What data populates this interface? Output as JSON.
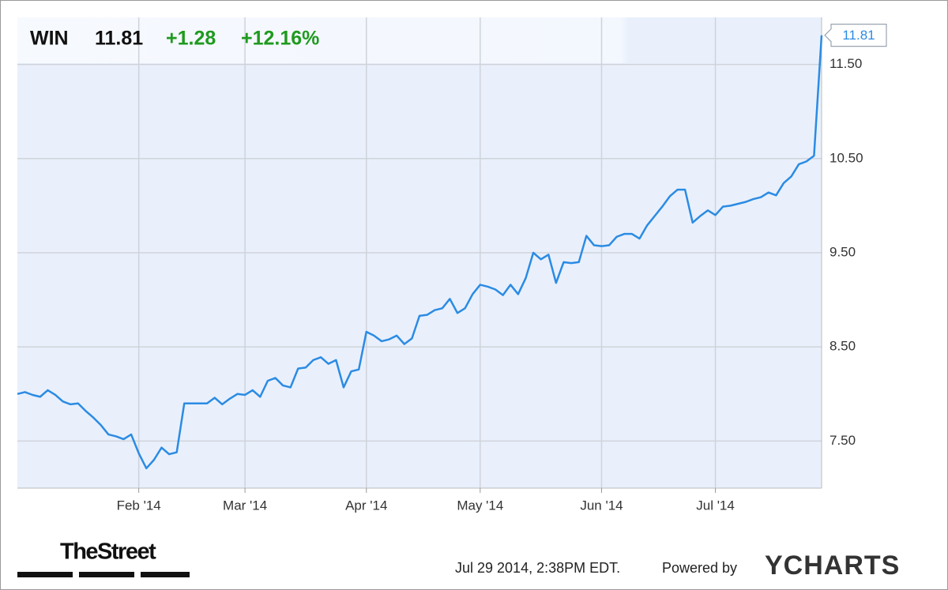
{
  "chart_data": {
    "type": "line",
    "header": {
      "ticker": "WIN",
      "price": "11.81",
      "change": "+1.28",
      "change_pct": "+12.16%"
    },
    "categories": [
      null,
      null,
      null,
      null,
      null,
      null,
      null,
      null,
      null,
      null,
      null,
      null,
      null,
      null,
      null,
      null,
      "Feb '14",
      null,
      null,
      null,
      null,
      null,
      null,
      null,
      null,
      null,
      null,
      null,
      null,
      null,
      "Mar '14",
      null,
      null,
      null,
      null,
      null,
      null,
      null,
      null,
      null,
      null,
      null,
      null,
      null,
      null,
      null,
      "Apr '14",
      null,
      null,
      null,
      null,
      null,
      null,
      null,
      null,
      null,
      null,
      null,
      null,
      null,
      null,
      "May '14",
      null,
      null,
      null,
      null,
      null,
      null,
      null,
      null,
      null,
      null,
      null,
      null,
      null,
      null,
      null,
      "Jun '14",
      null,
      null,
      null,
      null,
      null,
      null,
      null,
      null,
      null,
      null,
      null,
      null,
      null,
      null,
      "Jul '14",
      null,
      null,
      null,
      null,
      null,
      null,
      null,
      null,
      null,
      null,
      null,
      null,
      null,
      null
    ],
    "series": [
      {
        "name": "WIN",
        "color": "#2b8be3",
        "values": [
          8.0,
          8.02,
          7.99,
          7.97,
          8.04,
          7.99,
          7.92,
          7.89,
          7.9,
          7.82,
          7.75,
          7.67,
          7.57,
          7.55,
          7.52,
          7.57,
          7.37,
          7.21,
          7.3,
          7.43,
          7.36,
          7.38,
          7.9,
          7.9,
          7.9,
          7.9,
          7.96,
          7.89,
          7.95,
          8.0,
          7.99,
          8.04,
          7.97,
          8.14,
          8.17,
          8.09,
          8.07,
          8.27,
          8.28,
          8.36,
          8.39,
          8.32,
          8.36,
          8.07,
          8.24,
          8.26,
          8.66,
          8.62,
          8.56,
          8.58,
          8.62,
          8.53,
          8.59,
          8.83,
          8.84,
          8.89,
          8.91,
          9.01,
          8.86,
          8.91,
          9.06,
          9.16,
          9.14,
          9.11,
          9.05,
          9.16,
          9.06,
          9.23,
          9.5,
          9.43,
          9.48,
          9.18,
          9.4,
          9.39,
          9.4,
          9.68,
          9.58,
          9.57,
          9.58,
          9.67,
          9.7,
          9.7,
          9.65,
          9.79,
          9.89,
          9.99,
          10.1,
          10.17,
          10.17,
          9.82,
          9.89,
          9.95,
          9.9,
          9.99,
          10.0,
          10.02,
          10.04,
          10.07,
          10.09,
          10.14,
          10.11,
          10.24,
          10.31,
          10.44,
          10.47,
          10.53,
          11.81
        ],
        "value_labels": [
          null,
          null,
          null,
          null,
          null,
          null,
          null,
          null,
          null,
          null,
          null,
          null,
          null,
          null,
          null,
          null,
          null,
          null,
          null,
          null,
          null,
          null,
          null,
          null,
          null,
          null,
          null,
          null,
          null,
          null,
          null,
          null,
          null,
          null,
          null,
          null,
          null,
          null,
          null,
          null,
          null,
          null,
          null,
          null,
          null,
          null,
          null,
          null,
          null,
          null,
          null,
          null,
          null,
          null,
          null,
          null,
          null,
          null,
          null,
          null,
          null,
          null,
          null,
          null,
          null,
          null,
          null,
          null,
          null,
          null,
          null,
          null,
          null,
          null,
          null,
          null,
          null,
          null,
          null,
          null,
          null,
          null,
          null,
          null,
          null,
          null,
          null,
          null,
          null,
          null,
          null,
          null,
          null,
          null,
          null,
          null,
          null,
          null,
          null,
          null,
          null,
          null,
          null,
          null,
          null,
          null,
          "11.81"
        ]
      }
    ],
    "ylim": [
      7.0,
      12.0
    ],
    "yticks": [
      {
        "value": 7.5,
        "label": "7.50"
      },
      {
        "value": 8.5,
        "label": "8.50"
      },
      {
        "value": 9.5,
        "label": "9.50"
      },
      {
        "value": 10.5,
        "label": "10.50"
      },
      {
        "value": 11.5,
        "label": "11.50"
      }
    ],
    "grid": true,
    "footer": {
      "brand": "TheStreet",
      "timestamp": "Jul 29 2014, 2:38PM EDT.",
      "powered": "Powered by",
      "provider": "YCHARTS"
    }
  }
}
